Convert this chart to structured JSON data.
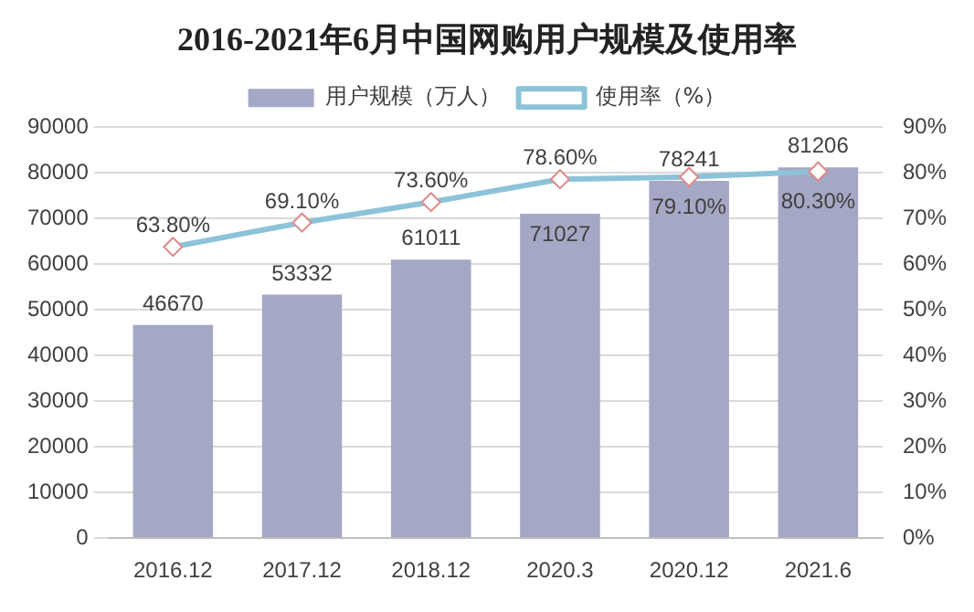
{
  "chart_data": {
    "type": "bar",
    "title": "2016-2021年6月中国网购用户规模及使用率",
    "categories": [
      "2016.12",
      "2017.12",
      "2018.12",
      "2020.3",
      "2020.12",
      "2021.6"
    ],
    "series": [
      {
        "name": "用户规模（万人）",
        "color": "#a5a8c4",
        "values": [
          46670,
          53332,
          61011,
          71027,
          78241,
          81206
        ]
      },
      {
        "name": "使用率（%）",
        "type": "line",
        "axis": "y2",
        "color": "#8dc3d9",
        "marker": "diamond",
        "values": [
          63.8,
          69.1,
          73.6,
          78.6,
          79.1,
          80.3
        ],
        "value_labels": [
          "63.80%",
          "69.10%",
          "73.60%",
          "78.60%",
          "79.10%",
          "80.30%"
        ]
      }
    ],
    "data_labels": true,
    "ylim": [
      0,
      90000
    ],
    "yticks": [
      0,
      10000,
      20000,
      30000,
      40000,
      50000,
      60000,
      70000,
      80000,
      90000
    ],
    "y2lim": [
      0,
      90
    ],
    "y2ticks": [
      {
        "value": 0,
        "label": "0%"
      },
      {
        "value": 10,
        "label": "10%"
      },
      {
        "value": 20,
        "label": "20%"
      },
      {
        "value": 30,
        "label": "30%"
      },
      {
        "value": 40,
        "label": "40%"
      },
      {
        "value": 50,
        "label": "50%"
      },
      {
        "value": 60,
        "label": "60%"
      },
      {
        "value": 70,
        "label": "70%"
      },
      {
        "value": 80,
        "label": "80%"
      },
      {
        "value": 90,
        "label": "90%"
      }
    ],
    "grid": "y",
    "legend": "top"
  }
}
